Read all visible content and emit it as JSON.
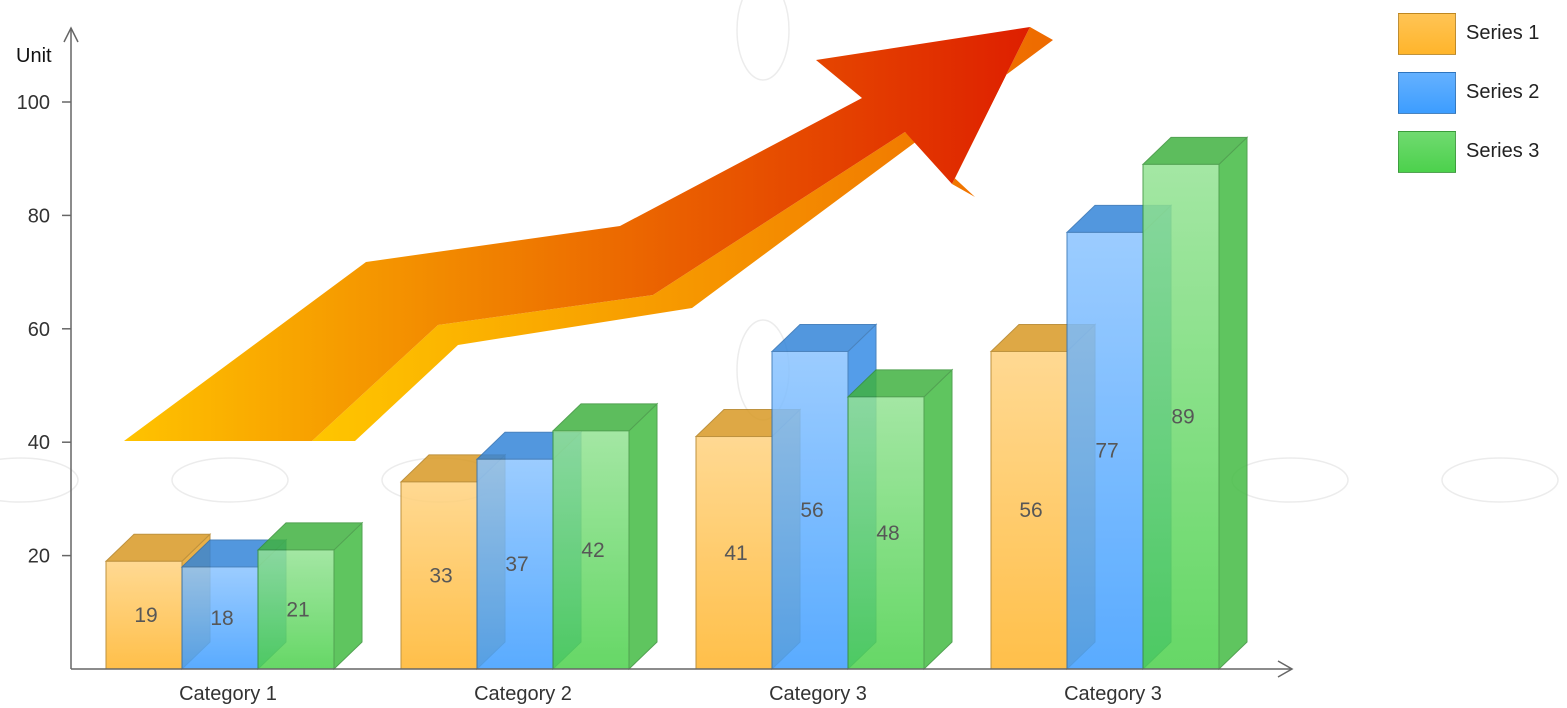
{
  "chart_data": {
    "type": "bar",
    "title": "",
    "xlabel": "",
    "ylabel": "Unit",
    "categories": [
      "Category 1",
      "Category 2",
      "Category 3",
      "Category 3"
    ],
    "series": [
      {
        "name": "Series 1",
        "values": [
          19,
          33,
          41,
          56
        ],
        "color": "#FFB52B"
      },
      {
        "name": "Series 2",
        "values": [
          18,
          37,
          56,
          77
        ],
        "color": "#3D9DFF"
      },
      {
        "name": "Series 3",
        "values": [
          21,
          42,
          48,
          89
        ],
        "color": "#4CD14C"
      }
    ],
    "ylim": [
      0,
      100
    ],
    "yticks": [
      "20",
      "40",
      "60",
      "80",
      "100"
    ],
    "grid": false,
    "legend_position": "top-right",
    "decoration": "red-orange trend arrow rising to the right"
  }
}
